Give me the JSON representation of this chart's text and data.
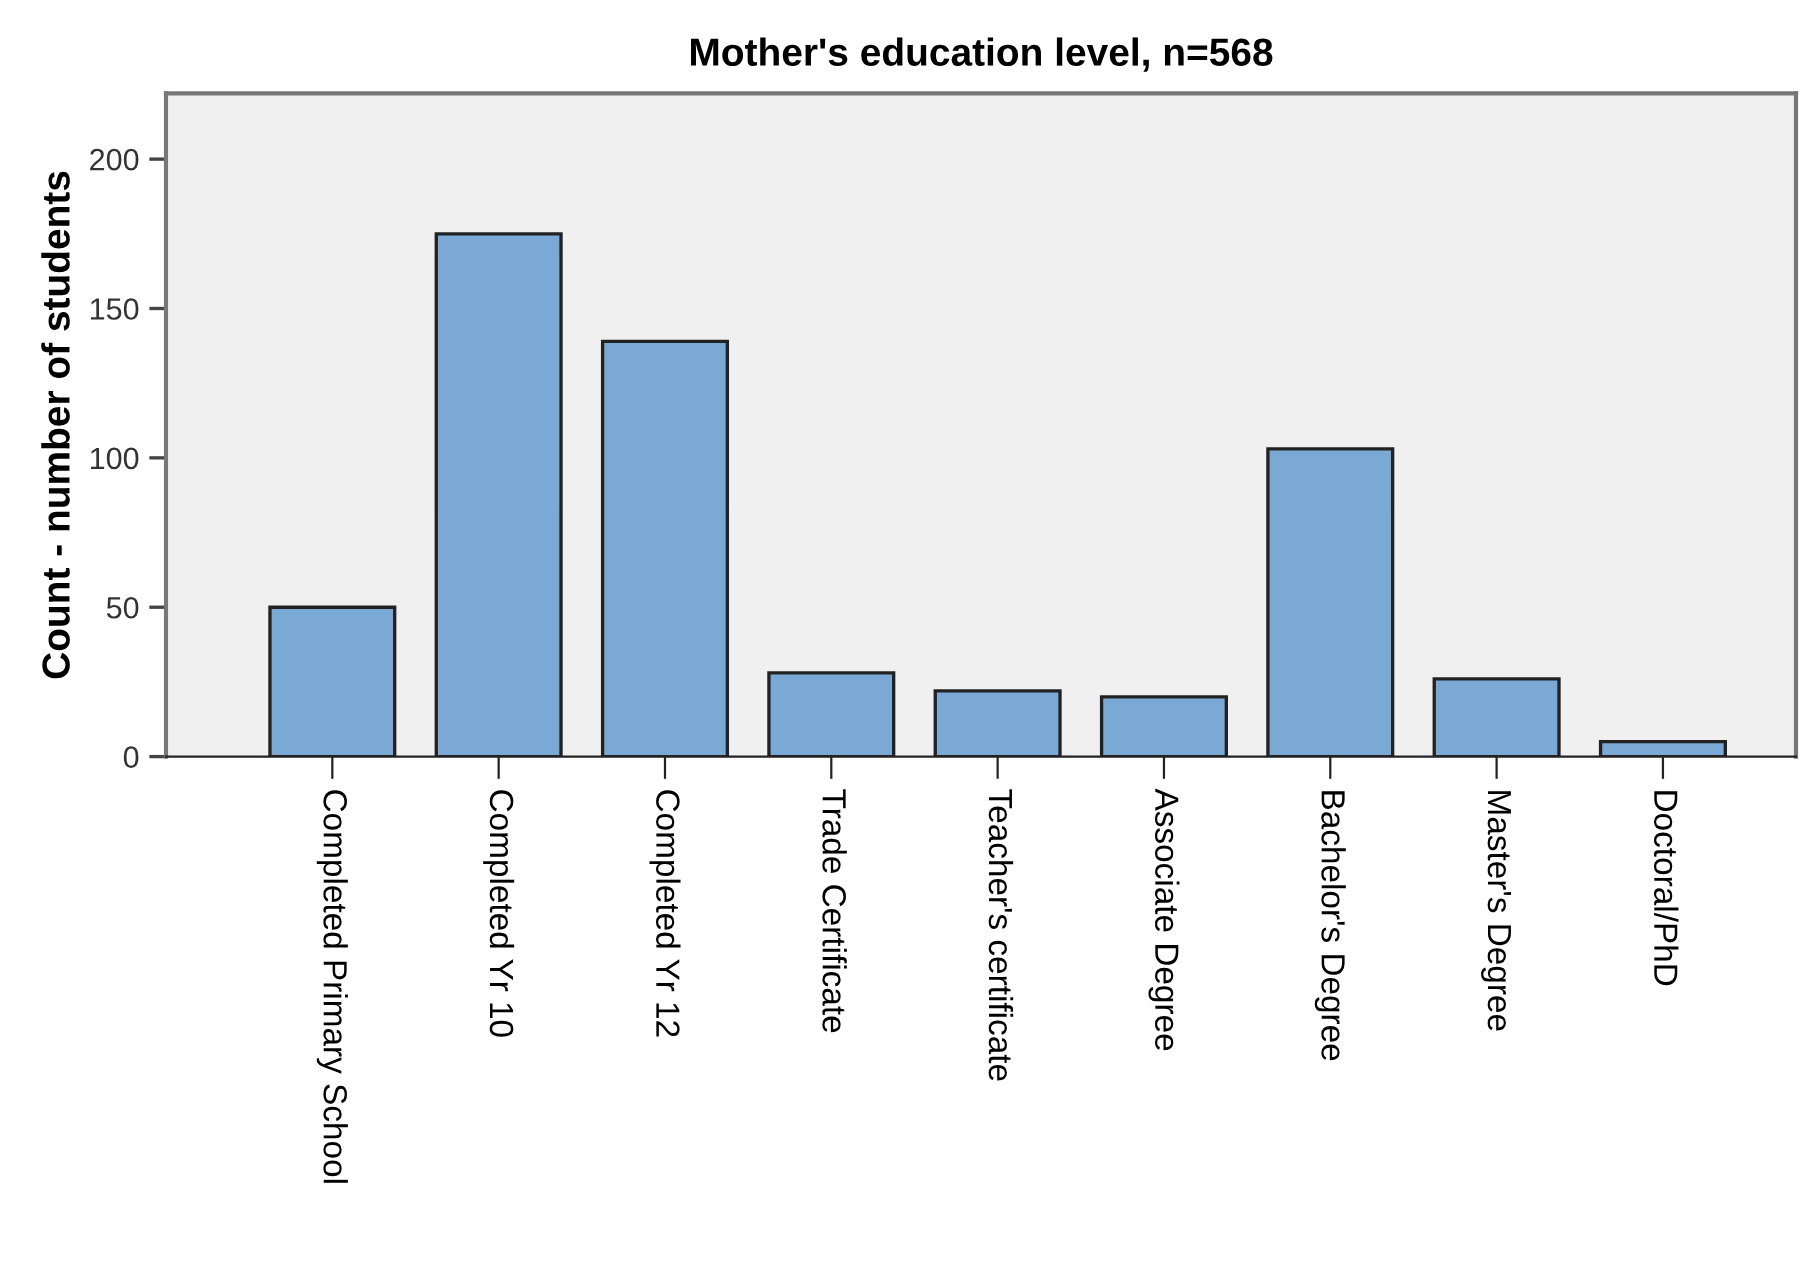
{
  "chart_data": {
    "type": "bar",
    "title": "Mother's education level, n=568",
    "ylabel": "Count - number of students",
    "categories": [
      "Completed Primary School",
      "Completed Yr 10",
      "Completed Yr 12",
      "Trade Certificate",
      "Teacher's certificate",
      "Associate Degree",
      "Bachelor's Degree",
      "Master's Degree",
      "Doctoral/PhD"
    ],
    "values": [
      50,
      175,
      139,
      28,
      22,
      20,
      103,
      26,
      5
    ],
    "color": "#7aa9d6",
    "ylim": [
      0,
      222
    ],
    "yticks": [
      0,
      50,
      100,
      150,
      200
    ],
    "grid": false
  }
}
